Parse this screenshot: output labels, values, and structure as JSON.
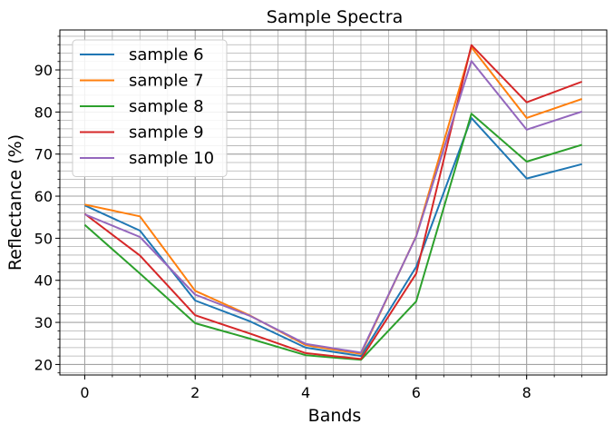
{
  "chart_data": {
    "type": "line",
    "title": "Sample Spectra",
    "xlabel": "Bands",
    "ylabel": "Reflectance (%)",
    "x": [
      0,
      1,
      2,
      3,
      4,
      5,
      6,
      7,
      8,
      9
    ],
    "xlim": [
      -0.45,
      9.45
    ],
    "ylim": [
      17.5,
      99.5
    ],
    "xticks": [
      0,
      2,
      4,
      6,
      8
    ],
    "yticks": [
      20,
      30,
      40,
      50,
      60,
      70,
      80,
      90
    ],
    "grid": true,
    "minor_grid": true,
    "legend_position": "upper-left",
    "series": [
      {
        "name": "sample 6",
        "color": "#1f77b4",
        "values": [
          57.8,
          51.8,
          35.2,
          30.2,
          24.0,
          22.0,
          43.2,
          78.6,
          64.2,
          67.6
        ]
      },
      {
        "name": "sample 7",
        "color": "#ff7f0e",
        "values": [
          58.0,
          55.2,
          37.5,
          31.6,
          24.6,
          22.5,
          50.5,
          95.4,
          78.6,
          83.1
        ]
      },
      {
        "name": "sample 8",
        "color": "#2ca02c",
        "values": [
          53.2,
          41.6,
          29.8,
          26.1,
          22.2,
          21.1,
          35.0,
          79.6,
          68.2,
          72.2
        ]
      },
      {
        "name": "sample 9",
        "color": "#d62728",
        "values": [
          55.8,
          45.9,
          31.7,
          27.3,
          22.7,
          21.3,
          41.6,
          95.9,
          82.3,
          87.2
        ]
      },
      {
        "name": "sample 10",
        "color": "#9467bd",
        "values": [
          55.7,
          50.3,
          36.6,
          31.5,
          24.9,
          22.8,
          50.4,
          92.1,
          75.8,
          80.1
        ]
      }
    ]
  }
}
